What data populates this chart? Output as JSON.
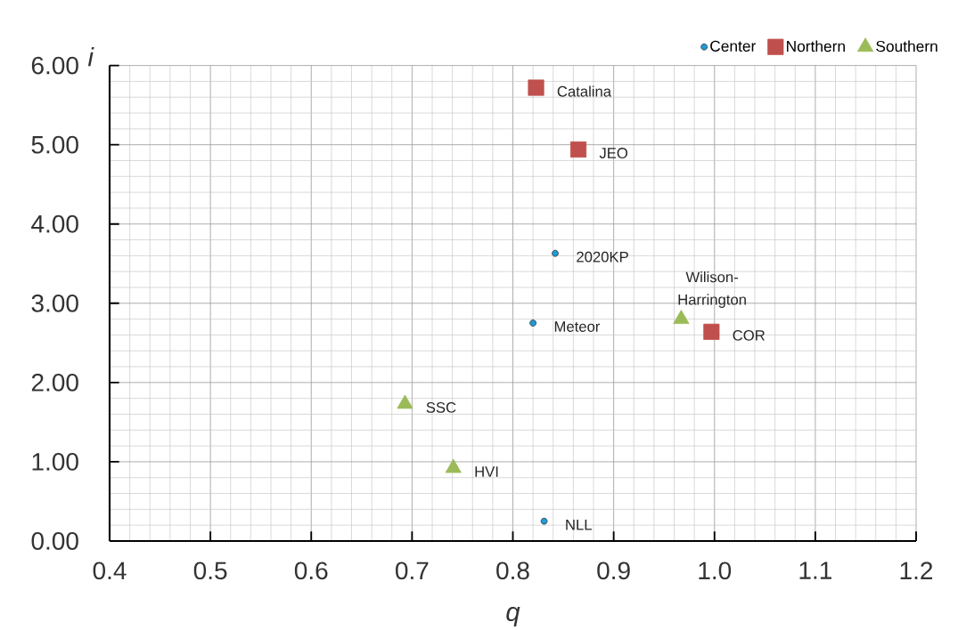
{
  "chart_data": {
    "type": "scatter",
    "xlabel": "q",
    "ylabel": "i",
    "xlim": [
      0.4,
      1.2
    ],
    "ylim": [
      0,
      6
    ],
    "xticks": [
      0.4,
      0.5,
      0.6,
      0.7,
      0.8,
      0.9,
      {
        "value": 1,
        "label": "1.0"
      },
      1.1,
      1.2
    ],
    "yticks": [
      {
        "value": 0,
        "label": "0.00"
      },
      {
        "value": 1,
        "label": "1.00"
      },
      {
        "value": 2,
        "label": "2.00"
      },
      {
        "value": 3,
        "label": "3.00"
      },
      {
        "value": 4,
        "label": "4.00"
      },
      {
        "value": 5,
        "label": "5.00"
      },
      {
        "value": 6,
        "label": "6.00"
      }
    ],
    "grid": true,
    "legend": "top right",
    "series": [
      {
        "name": "Center",
        "color": "#1f9bd7",
        "marker": "circle",
        "x": [
          0.842,
          0.82,
          0.831
        ],
        "values": [
          3.63,
          2.75,
          0.25
        ]
      },
      {
        "name": "Northern",
        "color": "#c0504d",
        "marker": "square",
        "x": [
          0.823,
          0.865,
          0.997
        ],
        "values": [
          5.72,
          4.94,
          2.64
        ]
      },
      {
        "name": "Southern",
        "color": "#9bbb59",
        "marker": "triangle",
        "x": [
          0.967,
          0.693,
          0.741
        ],
        "values": [
          2.8,
          1.73,
          0.92
        ]
      }
    ],
    "annotations": [
      {
        "text": "Catalina",
        "x": 0.823,
        "y": 5.72
      },
      {
        "text": "JEO",
        "x": 0.865,
        "y": 4.94
      },
      {
        "text": "2020KP",
        "x": 0.842,
        "y": 3.63
      },
      {
        "text": "Meteor",
        "x": 0.82,
        "y": 2.75
      },
      {
        "text": "Wilison-Harrington",
        "x": 0.967,
        "y": 2.8
      },
      {
        "text": "COR",
        "x": 0.997,
        "y": 2.64
      },
      {
        "text": "SSC",
        "x": 0.693,
        "y": 1.73
      },
      {
        "text": "HVI",
        "x": 0.741,
        "y": 0.92
      },
      {
        "text": "NLL",
        "x": 0.831,
        "y": 0.25
      }
    ]
  }
}
